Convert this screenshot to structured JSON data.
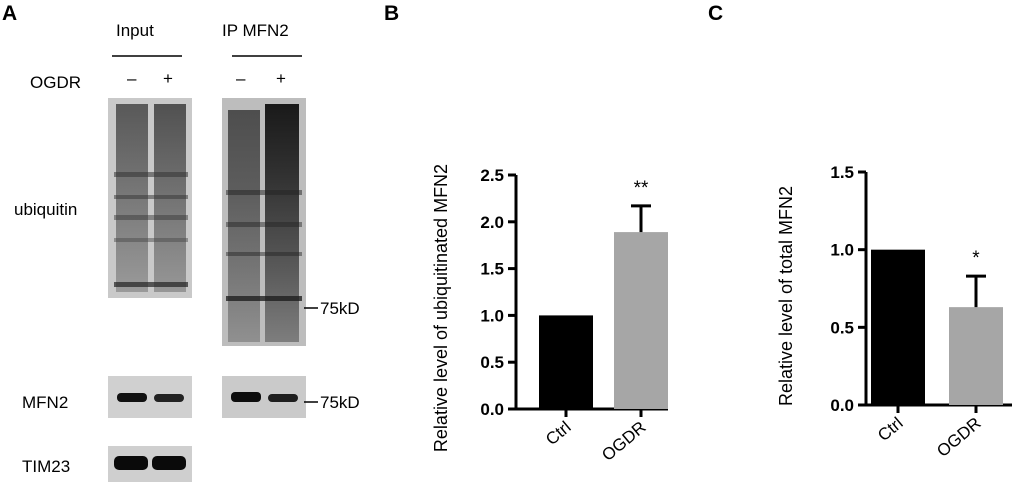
{
  "panels": {
    "a": "A",
    "b": "B",
    "c": "C"
  },
  "blot": {
    "groups": [
      "Input",
      "IP MFN2"
    ],
    "treatment_label": "OGDR",
    "lane_signs": [
      "–",
      "+",
      "–",
      "+"
    ],
    "rows": [
      "ubiquitin",
      "MFN2",
      "TIM23"
    ],
    "markers": [
      "75kD",
      "75kD"
    ]
  },
  "chart_data": [
    {
      "type": "bar",
      "panel": "B",
      "categories": [
        "Ctrl",
        "OGDR"
      ],
      "values": [
        1.0,
        1.89
      ],
      "errors": [
        0.0,
        0.28
      ],
      "colors": [
        "#000000",
        "#a6a6a6"
      ],
      "significance": [
        "",
        "**"
      ],
      "title": "",
      "xlabel": "",
      "ylabel": "Relative level of ubiquitinated MFN2",
      "ylim": [
        0,
        2.5
      ],
      "yticks": [
        "0.0",
        "0.5",
        "1.0",
        "1.5",
        "2.0",
        "2.5"
      ]
    },
    {
      "type": "bar",
      "panel": "C",
      "categories": [
        "Ctrl",
        "OGDR"
      ],
      "values": [
        1.0,
        0.63
      ],
      "errors": [
        0.0,
        0.2
      ],
      "colors": [
        "#000000",
        "#a6a6a6"
      ],
      "significance": [
        "",
        "*"
      ],
      "title": "",
      "xlabel": "",
      "ylabel": "Relative level of total MFN2",
      "ylim": [
        0,
        1.5
      ],
      "yticks": [
        "0.0",
        "0.5",
        "1.0",
        "1.5"
      ]
    }
  ]
}
